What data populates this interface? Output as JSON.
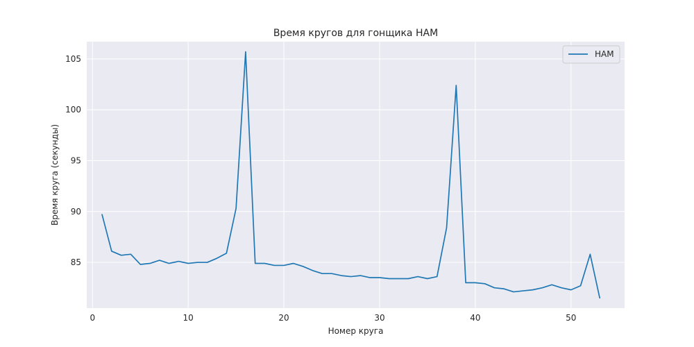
{
  "chart_data": {
    "type": "line",
    "title": "Время кругов для гонщика HAM",
    "xlabel": "Номер круга",
    "ylabel": "Время круга (секунды)",
    "xlim": [
      -0.6,
      55.6
    ],
    "ylim": [
      80.5,
      106.7
    ],
    "xticks": [
      0,
      10,
      20,
      30,
      40,
      50
    ],
    "yticks": [
      85,
      90,
      95,
      100,
      105
    ],
    "grid": true,
    "legend_position": "top-right",
    "colors": {
      "background": "#eaeaf2",
      "grid": "#ffffff",
      "line": "#1f77b4"
    },
    "series": [
      {
        "name": "HAM",
        "x": [
          1,
          2,
          3,
          4,
          5,
          6,
          7,
          8,
          9,
          10,
          11,
          12,
          13,
          14,
          15,
          16,
          17,
          18,
          19,
          20,
          21,
          22,
          23,
          24,
          25,
          26,
          27,
          28,
          29,
          30,
          31,
          32,
          33,
          34,
          35,
          36,
          37,
          38,
          39,
          40,
          41,
          42,
          43,
          44,
          45,
          46,
          47,
          48,
          49,
          50,
          51,
          52,
          53
        ],
        "y": [
          89.7,
          86.1,
          85.7,
          85.8,
          84.8,
          84.9,
          85.2,
          84.9,
          85.1,
          84.9,
          85.0,
          85.0,
          85.4,
          85.9,
          90.3,
          105.7,
          84.9,
          84.9,
          84.7,
          84.7,
          84.9,
          84.6,
          84.2,
          83.9,
          83.9,
          83.7,
          83.6,
          83.7,
          83.5,
          83.5,
          83.4,
          83.4,
          83.4,
          83.6,
          83.4,
          83.6,
          88.4,
          102.4,
          83.0,
          83.0,
          82.9,
          82.5,
          82.4,
          82.1,
          82.2,
          82.3,
          82.5,
          82.8,
          82.5,
          82.3,
          82.7,
          85.8,
          81.5
        ]
      }
    ]
  }
}
